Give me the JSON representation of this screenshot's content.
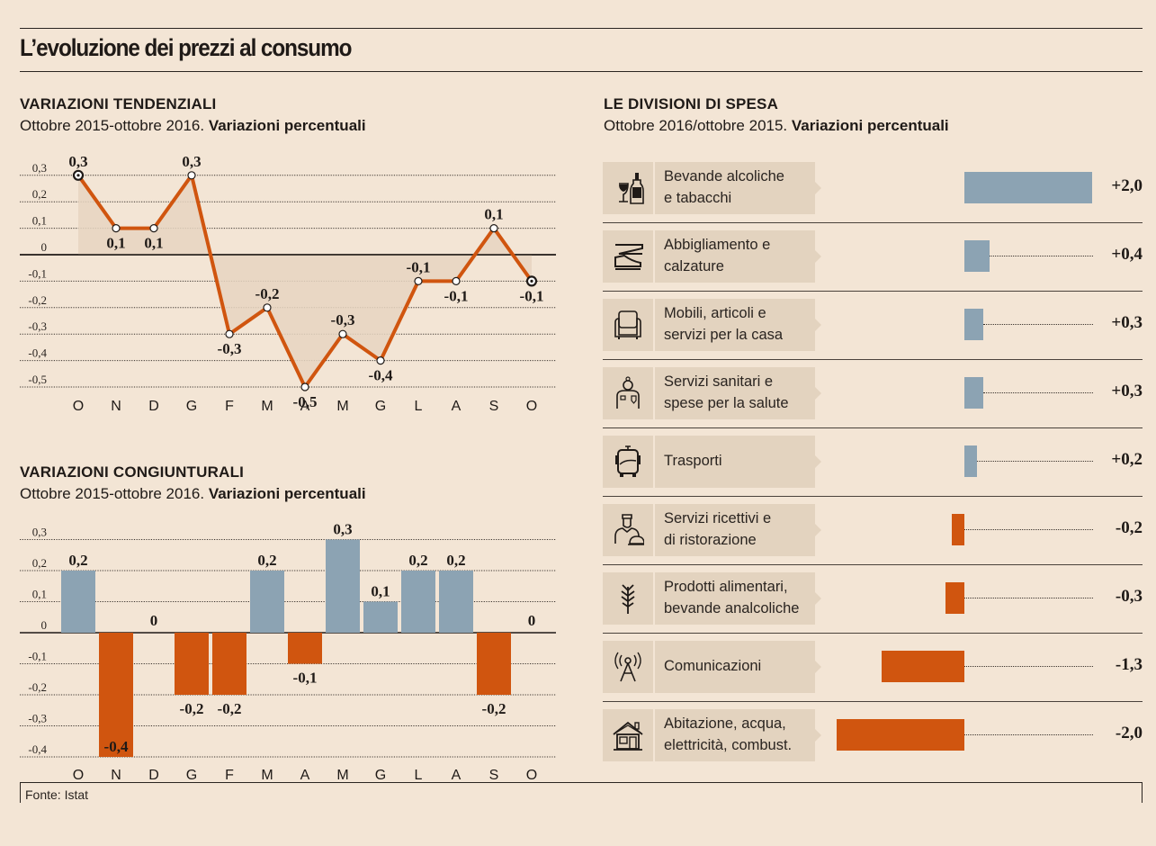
{
  "header": {
    "title": "L’evoluzione dei prezzi al consumo"
  },
  "colors": {
    "background": "#f3e5d5",
    "positive": "#8ca3b3",
    "negative": "#d0550f",
    "line": "#d0550f",
    "area": "#e6d5c1",
    "panel": "#e3d3bf"
  },
  "sections": {
    "tendenziali": {
      "heading": "VARIAZIONI TENDENZIALI",
      "subtitle_plain": "Ottobre 2015-ottobre 2016. ",
      "subtitle_bold": "Variazioni percentuali"
    },
    "congiunturali": {
      "heading": "VARIAZIONI CONGIUNTURALI",
      "subtitle_plain": "Ottobre 2015-ottobre 2016. ",
      "subtitle_bold": "Variazioni percentuali"
    },
    "divisioni": {
      "heading": "LE DIVISIONI DI SPESA",
      "subtitle_plain": "Ottobre 2016/ottobre 2015. ",
      "subtitle_bold": "Variazioni percentuali"
    }
  },
  "footer": {
    "source": "Fonte: Istat"
  },
  "chart_data": [
    {
      "type": "line",
      "title": "VARIAZIONI TENDENZIALI",
      "categories": [
        "O",
        "N",
        "D",
        "G",
        "F",
        "M",
        "A",
        "M",
        "G",
        "L",
        "A",
        "S",
        "O"
      ],
      "values": [
        0.3,
        0.1,
        0.1,
        0.3,
        -0.3,
        -0.2,
        -0.5,
        -0.3,
        -0.4,
        -0.1,
        -0.1,
        0.1,
        -0.1
      ],
      "labels": [
        "0,3",
        "0,1",
        "0,1",
        "0,3",
        "-0,3",
        "-0,2",
        "-0,5",
        "-0,3",
        "-0,4",
        "-0,1",
        "-0,1",
        "0,1",
        "-0,1"
      ],
      "label_pos": [
        "above",
        "below",
        "below",
        "above",
        "below",
        "above",
        "below",
        "above",
        "below",
        "above",
        "below",
        "above",
        "below"
      ],
      "yticks": [
        0.3,
        0.2,
        0.1,
        0,
        -0.1,
        -0.2,
        -0.3,
        -0.4,
        -0.5
      ],
      "ytick_labels": [
        "0,3",
        "0,2",
        "0,1",
        "0",
        "-0,1",
        "-0,2",
        "-0,3",
        "-0,4",
        "-0,5"
      ],
      "ylim": [
        -0.5,
        0.3
      ],
      "grid": true,
      "area_fill": true
    },
    {
      "type": "bar",
      "title": "VARIAZIONI CONGIUNTURALI",
      "categories": [
        "O",
        "N",
        "D",
        "G",
        "F",
        "M",
        "A",
        "M",
        "G",
        "L",
        "A",
        "S",
        "O"
      ],
      "values": [
        0.2,
        -0.4,
        0,
        -0.2,
        -0.2,
        0.2,
        -0.1,
        0.3,
        0.1,
        0.2,
        0.2,
        -0.2,
        0
      ],
      "labels": [
        "0,2",
        "-0,4",
        "0",
        "-0,2",
        "-0,2",
        "0,2",
        "-0,1",
        "0,3",
        "0,1",
        "0,2",
        "0,2",
        "-0,2",
        "0"
      ],
      "yticks": [
        0.3,
        0.2,
        0.1,
        0,
        -0.1,
        -0.2,
        -0.3,
        -0.4
      ],
      "ytick_labels": [
        "0,3",
        "0,2",
        "0,1",
        "0",
        "-0,1",
        "-0,2",
        "-0,3",
        "-0,4"
      ],
      "ylim": [
        -0.4,
        0.3
      ],
      "grid": true
    },
    {
      "type": "bar",
      "orientation": "horizontal",
      "title": "LE DIVISIONI DI SPESA",
      "categories": [
        "Bevande alcoliche e tabacchi",
        "Abbigliamento e calzature",
        "Mobili, articoli e servizi per la casa",
        "Servizi sanitari e spese per la salute",
        "Trasporti",
        "Servizi ricettivi e di ristorazione",
        "Prodotti alimentari, bevande analcoliche",
        "Comunicazioni",
        "Abitazione, acqua, elettricità, combust."
      ],
      "label_lines": [
        [
          "Bevande alcoliche",
          "e tabacchi"
        ],
        [
          "Abbigliamento e",
          "calzature"
        ],
        [
          "Mobili, articoli e",
          "servizi per la casa"
        ],
        [
          "Servizi sanitari e",
          "spese per la salute"
        ],
        [
          "Trasporti"
        ],
        [
          "Servizi ricettivi e",
          "di ristorazione"
        ],
        [
          "Prodotti alimentari,",
          "bevande analcoliche"
        ],
        [
          "Comunicazioni"
        ],
        [
          "Abitazione, acqua,",
          "elettricità, combust."
        ]
      ],
      "icons": [
        "wine-bottle-icon",
        "clothing-shoe-icon",
        "armchair-icon",
        "doctor-icon",
        "bus-icon",
        "waiter-icon",
        "wheat-icon",
        "antenna-icon",
        "house-icon"
      ],
      "values": [
        2.0,
        0.4,
        0.3,
        0.3,
        0.2,
        -0.2,
        -0.3,
        -1.3,
        -2.0
      ],
      "value_labels": [
        "+2,0",
        "+0,4",
        "+0,3",
        "+0,3",
        "+0,2",
        "-0,2",
        "-0,3",
        "-1,3",
        "-2,0"
      ]
    }
  ]
}
